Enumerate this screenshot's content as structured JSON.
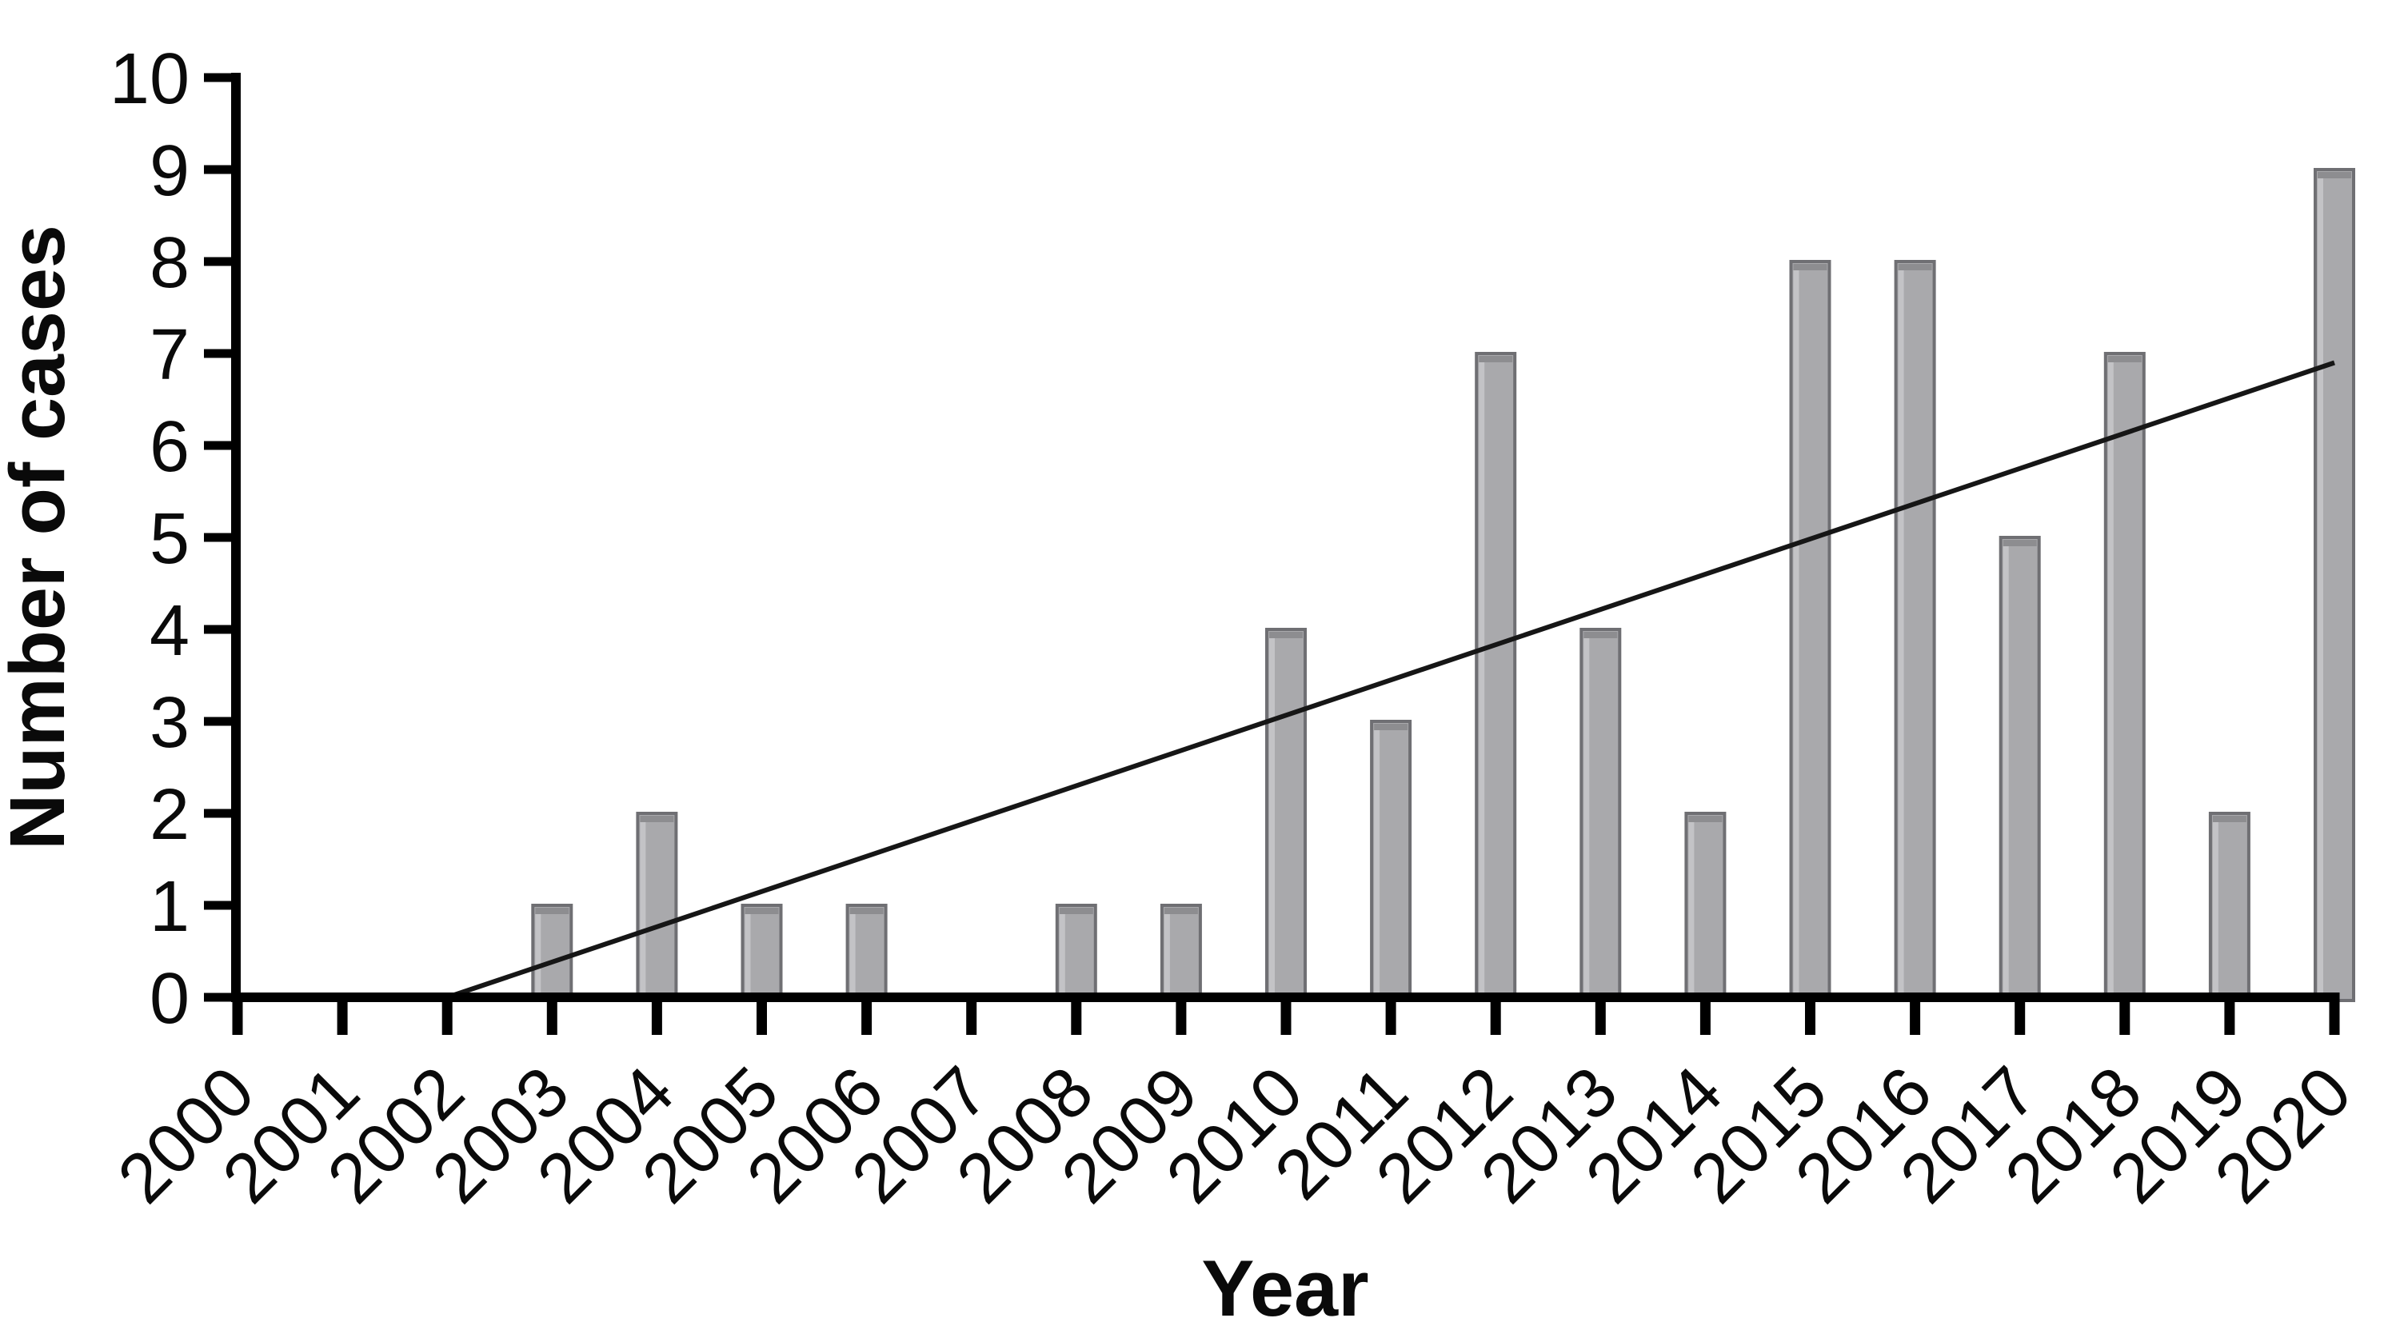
{
  "chart_data": {
    "type": "bar",
    "title": "",
    "xlabel": "Year",
    "ylabel": "Number of cases",
    "categories": [
      "2000",
      "2001",
      "2002",
      "2003",
      "2004",
      "2005",
      "2006",
      "2007",
      "2008",
      "2009",
      "2010",
      "2011",
      "2012",
      "2013",
      "2014",
      "2015",
      "2016",
      "2017",
      "2018",
      "2019",
      "2020"
    ],
    "values": [
      0,
      0,
      0,
      1,
      2,
      1,
      1,
      0,
      1,
      1,
      4,
      3,
      7,
      4,
      2,
      8,
      8,
      5,
      7,
      2,
      9
    ],
    "ylim": [
      0,
      10
    ],
    "yticks": [
      0,
      1,
      2,
      3,
      4,
      5,
      6,
      7,
      8,
      9,
      10
    ],
    "grid": false,
    "legend": "none",
    "trend_line": {
      "start_year": 2002,
      "start_value": 0,
      "end_year": 2020,
      "end_value": 6.9
    },
    "colors": {
      "bar_fill": "#a9a9ac",
      "bar_border": "#6f6f73",
      "bar_top_shade": "#8d8d90",
      "bar_left_highlight": "#c3c3c6",
      "trend_line": "#161616",
      "axis": "#000000",
      "background": "#ffffff",
      "text": "#0a0a0a"
    }
  }
}
